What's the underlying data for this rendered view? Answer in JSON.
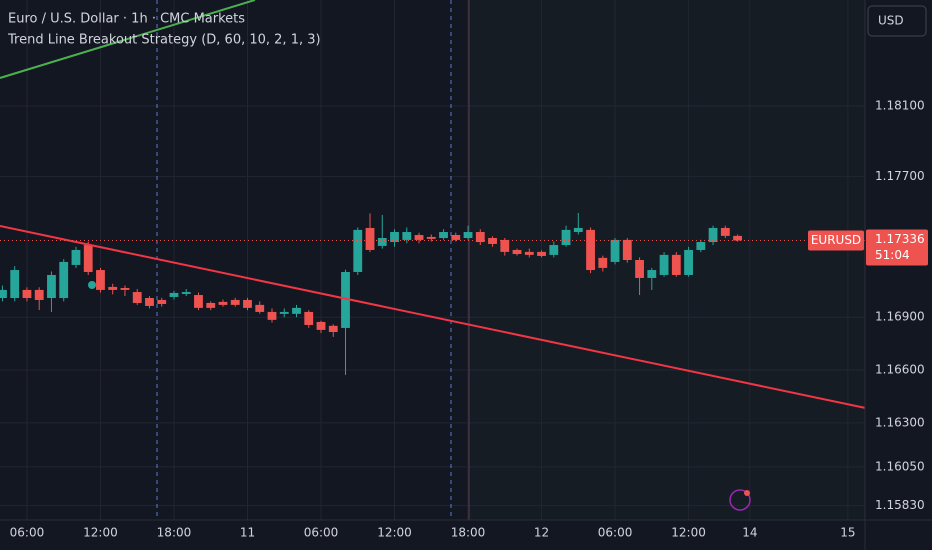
{
  "chart_data": {
    "type": "candlestick",
    "title": "Euro / U.S. Dollar · 1h · CMC Markets",
    "subtitle": "Trend Line Breakout Strategy (D, 60, 10, 2, 1, 3)",
    "currency": "USD",
    "symbol": "EURUSD",
    "last_price": "1.17336",
    "countdown": "51:04",
    "up_color": "#26a69a",
    "down_color": "#ef5350",
    "grid": true,
    "x": [
      0,
      1,
      2,
      3,
      4,
      5,
      6,
      7,
      8,
      9,
      10,
      11,
      12,
      13,
      14,
      15,
      16,
      17,
      18,
      19,
      20,
      21,
      22,
      23,
      24,
      25,
      26,
      27,
      28,
      29,
      30,
      31,
      32,
      33,
      34,
      35,
      36,
      37,
      38,
      39,
      40,
      41,
      42,
      43,
      44,
      45,
      46,
      47,
      48,
      49,
      50,
      51,
      52,
      53,
      54,
      55,
      56,
      57,
      58,
      59,
      60
    ],
    "open": [
      1.17009,
      1.17009,
      1.17055,
      1.17055,
      1.17009,
      1.17009,
      1.17197,
      1.1731,
      1.17168,
      1.17072,
      1.17066,
      1.17043,
      1.17009,
      1.16998,
      1.17015,
      1.17032,
      1.17026,
      1.16981,
      1.16987,
      1.16998,
      1.16998,
      1.1697,
      1.1693,
      1.16919,
      1.16919,
      1.1693,
      1.16873,
      1.16851,
      1.16839,
      1.17157,
      1.17407,
      1.17305,
      1.17327,
      1.17339,
      1.17367,
      1.17356,
      1.1735,
      1.17367,
      1.1735,
      1.17384,
      1.1735,
      1.17339,
      1.17282,
      1.17271,
      1.17271,
      1.17254,
      1.1731,
      1.17384,
      1.17396,
      1.17237,
      1.17214,
      1.17339,
      1.17225,
      1.17123,
      1.1714,
      1.17254,
      1.1714,
      1.17282,
      1.17327,
      1.17407,
      1.17362
    ],
    "high": [
      1.1708,
      1.1719,
      1.1707,
      1.1707,
      1.1716,
      1.1723,
      1.173,
      1.1733,
      1.1718,
      1.1709,
      1.1708,
      1.1706,
      1.1702,
      1.1701,
      1.1705,
      1.1706,
      1.1704,
      1.1699,
      1.17,
      1.1701,
      1.1701,
      1.1699,
      1.1695,
      1.1695,
      1.1697,
      1.1694,
      1.1688,
      1.1686,
      1.1717,
      1.1741,
      1.1749,
      1.17481,
      1.174,
      1.1741,
      1.1738,
      1.1737,
      1.174,
      1.1738,
      1.1742,
      1.174,
      1.1736,
      1.1735,
      1.1729,
      1.1729,
      1.1728,
      1.1733,
      1.1742,
      1.17492,
      1.1741,
      1.1725,
      1.1735,
      1.1735,
      1.1724,
      1.1718,
      1.1727,
      1.1727,
      1.173,
      1.1734,
      1.1742,
      1.1742,
      1.1737
    ],
    "low": [
      1.1699,
      1.1699,
      1.1699,
      1.16941,
      1.1693,
      1.1699,
      1.1718,
      1.1714,
      1.1704,
      1.1703,
      1.1702,
      1.1697,
      1.1695,
      1.1696,
      1.17,
      1.1702,
      1.1694,
      1.1694,
      1.1696,
      1.1696,
      1.1694,
      1.1692,
      1.1687,
      1.169,
      1.169,
      1.1684,
      1.1681,
      1.16788,
      1.16572,
      1.1714,
      1.1727,
      1.1729,
      1.173,
      1.1732,
      1.1732,
      1.1733,
      1.1734,
      1.1733,
      1.1734,
      1.1731,
      1.173,
      1.1725,
      1.1725,
      1.1724,
      1.1724,
      1.1724,
      1.173,
      1.1737,
      1.1715,
      1.1716,
      1.172,
      1.1721,
      1.17026,
      1.17055,
      1.1713,
      1.1713,
      1.1713,
      1.1727,
      1.1731,
      1.1735,
      1.1733
    ],
    "close": [
      1.17055,
      1.17168,
      1.17009,
      1.16998,
      1.1714,
      1.17214,
      1.17282,
      1.17157,
      1.17055,
      1.17055,
      1.17055,
      1.16981,
      1.16964,
      1.16975,
      1.17038,
      1.17043,
      1.16953,
      1.16953,
      1.1697,
      1.1697,
      1.16953,
      1.1693,
      1.16885,
      1.1693,
      1.16953,
      1.16856,
      1.16828,
      1.16816,
      1.17157,
      1.17396,
      1.17282,
      1.1735,
      1.17384,
      1.17384,
      1.17339,
      1.17345,
      1.17384,
      1.17339,
      1.17384,
      1.17327,
      1.17316,
      1.17271,
      1.17259,
      1.17254,
      1.17248,
      1.1731,
      1.17396,
      1.17407,
      1.17168,
      1.1718,
      1.17339,
      1.17225,
      1.17123,
      1.17168,
      1.17254,
      1.1714,
      1.17282,
      1.17327,
      1.17407,
      1.17362,
      1.17336
    ],
    "trendlines": [
      {
        "color": "#f23645",
        "x": [
          -0.2,
          70.4
        ],
        "values": [
          1.17418,
          1.16385
        ]
      },
      {
        "color": "#4caf50",
        "x": [
          -0.2,
          20.6
        ],
        "values": [
          1.18259,
          1.18702
        ]
      }
    ],
    "xlim": [
      -0.2,
      70.4
    ],
    "xticks": [
      {
        "value": 2,
        "label": "06:00"
      },
      {
        "value": 8,
        "label": "12:00"
      },
      {
        "value": 14,
        "label": "18:00"
      },
      {
        "value": 20,
        "label": "11"
      },
      {
        "value": 26,
        "label": "06:00"
      },
      {
        "value": 32,
        "label": "12:00"
      },
      {
        "value": 38,
        "label": "18:00"
      },
      {
        "value": 44,
        "label": "12"
      },
      {
        "value": 50,
        "label": "06:00"
      },
      {
        "value": 56,
        "label": "12:00"
      },
      {
        "value": 61,
        "label": "14"
      },
      {
        "value": 69,
        "label": "15"
      }
    ],
    "ylim": [
      1.15748,
      1.18702
    ],
    "yticks": [
      {
        "value": 1.181,
        "label": "1.18100"
      },
      {
        "value": 1.177,
        "label": "1.17700"
      },
      {
        "value": 1.169,
        "label": "1.16900"
      },
      {
        "value": 1.166,
        "label": "1.16600"
      },
      {
        "value": 1.163,
        "label": "1.16300"
      },
      {
        "value": 1.1605,
        "label": "1.16050"
      },
      {
        "value": 1.1583,
        "label": "1.15830"
      }
    ]
  }
}
